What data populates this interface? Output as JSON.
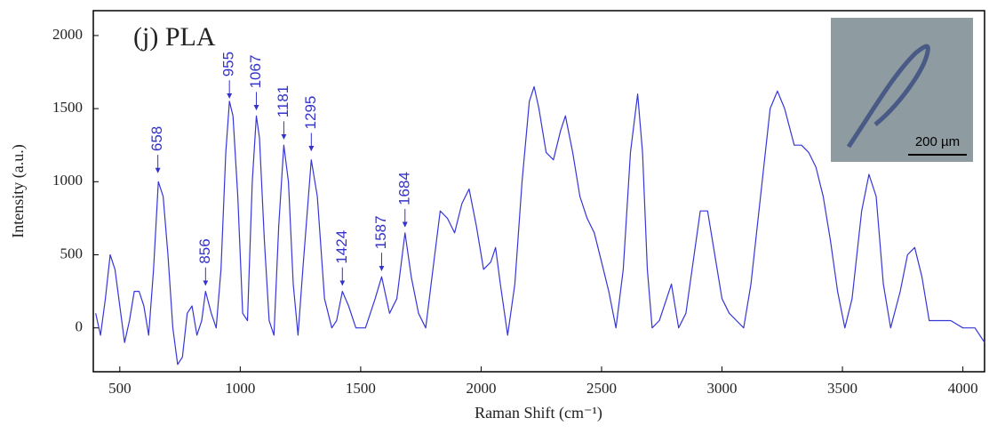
{
  "chart_data": {
    "type": "line",
    "title": "(j) PLA",
    "xlabel": "Raman Shift (cm⁻¹)",
    "ylabel": "Intensity (a.u.)",
    "inset_label": "200 µm",
    "xlim": [
      390,
      4090
    ],
    "ylim": [
      -300,
      2170
    ],
    "xticks": [
      500,
      1000,
      1500,
      2000,
      2500,
      3000,
      3500,
      4000
    ],
    "yticks": [
      0,
      500,
      1000,
      1500,
      2000
    ],
    "grid": false,
    "series": [
      {
        "name": "PLA",
        "color": "#3636d8",
        "x": [
          400,
          420,
          440,
          460,
          480,
          500,
          520,
          540,
          560,
          580,
          600,
          620,
          640,
          660,
          680,
          700,
          720,
          740,
          760,
          780,
          800,
          820,
          840,
          856,
          880,
          900,
          920,
          940,
          955,
          970,
          990,
          1010,
          1030,
          1050,
          1067,
          1080,
          1100,
          1120,
          1140,
          1160,
          1181,
          1200,
          1220,
          1240,
          1260,
          1295,
          1320,
          1350,
          1380,
          1400,
          1424,
          1450,
          1480,
          1520,
          1560,
          1587,
          1620,
          1650,
          1684,
          1710,
          1740,
          1770,
          1800,
          1830,
          1860,
          1890,
          1920,
          1950,
          1980,
          2010,
          2040,
          2060,
          2080,
          2110,
          2140,
          2170,
          2200,
          2220,
          2240,
          2270,
          2300,
          2330,
          2350,
          2380,
          2410,
          2440,
          2470,
          2500,
          2530,
          2560,
          2590,
          2620,
          2650,
          2670,
          2690,
          2710,
          2740,
          2770,
          2790,
          2820,
          2850,
          2880,
          2910,
          2940,
          2970,
          3000,
          3030,
          3060,
          3090,
          3120,
          3160,
          3200,
          3230,
          3260,
          3300,
          3330,
          3360,
          3390,
          3420,
          3450,
          3480,
          3510,
          3540,
          3580,
          3610,
          3640,
          3670,
          3700,
          3740,
          3770,
          3800,
          3830,
          3860,
          3900,
          3950,
          4000,
          4050,
          4090
        ],
        "values": [
          100,
          -50,
          200,
          500,
          400,
          150,
          -100,
          50,
          250,
          250,
          150,
          -50,
          400,
          1000,
          900,
          500,
          0,
          -250,
          -200,
          100,
          150,
          -50,
          50,
          250,
          100,
          0,
          400,
          1200,
          1550,
          1450,
          900,
          100,
          50,
          1000,
          1450,
          1300,
          600,
          50,
          -50,
          700,
          1250,
          1000,
          300,
          -50,
          400,
          1150,
          900,
          200,
          0,
          50,
          250,
          150,
          0,
          0,
          200,
          350,
          100,
          200,
          650,
          350,
          100,
          0,
          400,
          800,
          750,
          650,
          850,
          950,
          700,
          400,
          450,
          550,
          300,
          -50,
          300,
          1000,
          1550,
          1650,
          1500,
          1200,
          1150,
          1350,
          1450,
          1200,
          900,
          750,
          650,
          450,
          250,
          0,
          400,
          1200,
          1600,
          1200,
          400,
          0,
          50,
          200,
          300,
          0,
          100,
          450,
          800,
          800,
          500,
          200,
          100,
          50,
          0,
          300,
          900,
          1500,
          1620,
          1500,
          1250,
          1250,
          1200,
          1100,
          900,
          600,
          250,
          0,
          200,
          800,
          1050,
          900,
          300,
          0,
          250,
          500,
          550,
          350,
          50,
          50,
          50,
          0,
          0,
          -100
        ]
      }
    ],
    "annotations": [
      {
        "text": "658",
        "x": 658,
        "y": 1050
      },
      {
        "text": "856",
        "x": 856,
        "y": 280
      },
      {
        "text": "955",
        "x": 955,
        "y": 1560
      },
      {
        "text": "1067",
        "x": 1067,
        "y": 1480
      },
      {
        "text": "1181",
        "x": 1181,
        "y": 1280
      },
      {
        "text": "1295",
        "x": 1295,
        "y": 1200
      },
      {
        "text": "1424",
        "x": 1424,
        "y": 280
      },
      {
        "text": "1587",
        "x": 1587,
        "y": 380
      },
      {
        "text": "1684",
        "x": 1684,
        "y": 680
      }
    ]
  }
}
